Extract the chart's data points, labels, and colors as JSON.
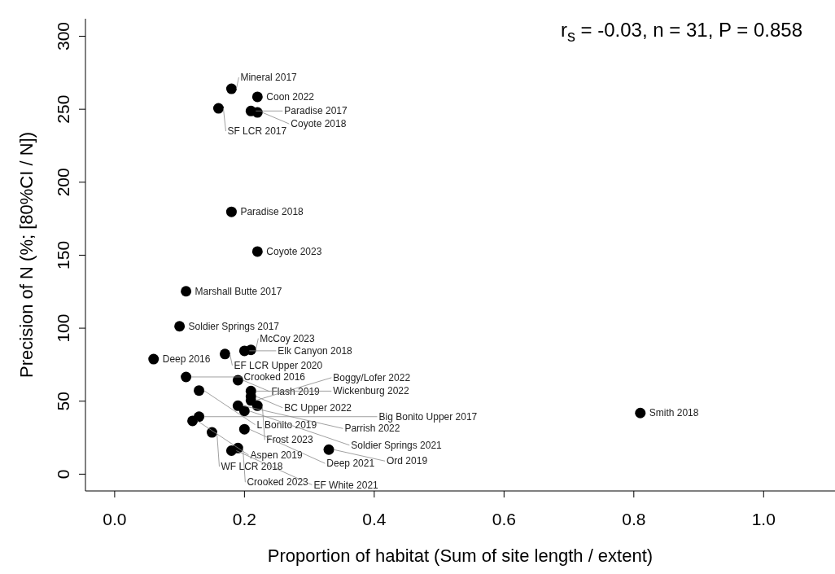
{
  "chart_data": {
    "type": "scatter",
    "xlabel": "Proportion of habitat (Sum of site length / extent)",
    "ylabel": "Precision of N (%; [80%CI / N])",
    "annotations": [
      "r$_{s}$ = -0.03,  n = 31,  P = 0.858"
    ],
    "xlim": [
      -0.045,
      1.11
    ],
    "xticks": [
      {
        "value": 0,
        "label": "0.0"
      },
      {
        "value": 0.2,
        "label": "0.2"
      },
      {
        "value": 0.4,
        "label": "0.4"
      },
      {
        "value": 0.6,
        "label": "0.6"
      },
      {
        "value": 0.8,
        "label": "0.8"
      },
      {
        "value": 1,
        "label": "1.0"
      }
    ],
    "ylim": [
      -11.5,
      312
    ],
    "yticks": [
      0,
      50,
      100,
      150,
      200,
      250,
      300
    ],
    "marker": "circle",
    "series": [
      {
        "color": "#000000",
        "x": [
          0.18,
          0.22,
          0.16,
          0.21,
          0.22,
          0.18,
          0.22,
          0.11,
          0.1,
          0.06,
          0.17,
          0.2,
          0.21,
          0.11,
          0.19,
          0.13,
          0.21,
          0.21,
          0.21,
          0.19,
          0.22,
          0.2,
          0.13,
          0.12,
          0.15,
          0.2,
          0.19,
          0.18,
          0.33,
          0.81
        ],
        "values": [
          264,
          258.5,
          250.6,
          248.8,
          247.8,
          179.7,
          152.5,
          125.3,
          101.3,
          78.8,
          82.3,
          84.5,
          85.2,
          66.6,
          64.4,
          57.3,
          56.9,
          53.3,
          50.5,
          46.9,
          46.9,
          43.3,
          39.4,
          36.5,
          28.6,
          30.8,
          17.9,
          16.1,
          16.8,
          41.9
        ],
        "value_labels": [
          "Mineral 2017",
          "Coon 2022",
          "SF LCR 2017",
          "Paradise 2017",
          "Coyote 2018",
          "Paradise 2018",
          "Coyote 2023",
          "Marshall Butte 2017",
          "Soldier Springs 2017",
          "Deep 2016",
          "EF LCR Upper 2020",
          "Elk Canyon 2018",
          "McCoy 2023",
          "Crooked 2016",
          "Flash 2019",
          "L Bonito 2019",
          "Wickenburg 2022",
          "BC Upper 2022",
          "Boggy/Lofer 2022",
          "Parrish 2022",
          "Frost 2023",
          "Soldier Springs 2021",
          "Big Bonito Upper 2017",
          "Aspen 2019",
          "WF LCR 2018",
          "Deep 2021",
          "Crooked 2023",
          "EF White 2021",
          "Ord 2019",
          "Smith 2018"
        ]
      }
    ]
  }
}
